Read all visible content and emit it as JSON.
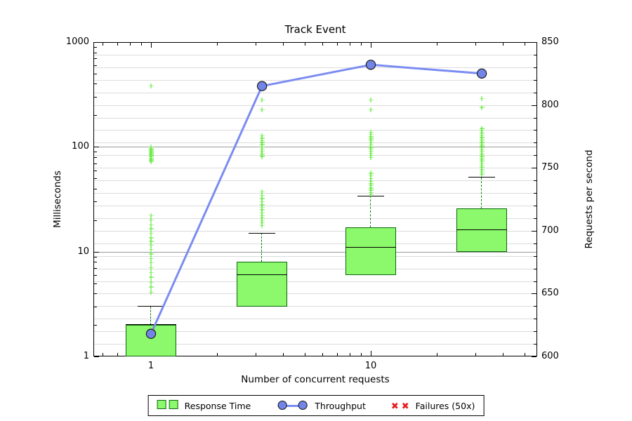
{
  "title": "Track Event",
  "axes": {
    "x": {
      "label": "Number of concurrent requests",
      "scale": "log",
      "tick_labels": [
        "1",
        "10"
      ],
      "tick_values": [
        1,
        10
      ]
    },
    "y_left": {
      "label": "Milliseconds",
      "scale": "log",
      "tick_labels": [
        "1000",
        "100",
        "10",
        "1"
      ],
      "tick_values": [
        1000,
        100,
        10,
        1
      ],
      "range": [
        1,
        1000
      ]
    },
    "y_right": {
      "label": "Requests per second",
      "scale": "linear",
      "tick_labels": [
        "850",
        "800",
        "750",
        "700",
        "650",
        "600"
      ],
      "tick_values": [
        850,
        800,
        750,
        700,
        650,
        600
      ],
      "range": [
        600,
        850
      ],
      "minor_step": 10
    }
  },
  "legend": {
    "items": [
      {
        "label": "Response Time",
        "marker": "box",
        "color": "#8bf96b"
      },
      {
        "label": "Throughput",
        "marker": "circle-line",
        "color": "#7b8cf2"
      },
      {
        "label": "Failures (50x)",
        "marker": "x-cross",
        "color": "#e81c1c"
      }
    ]
  },
  "chart_data": {
    "type": "boxplot+line",
    "title": "Track Event",
    "xlabel": "Number of concurrent requests",
    "x_scale": "log",
    "y_left": {
      "label": "Milliseconds",
      "scale": "log",
      "range": [
        1,
        1000
      ],
      "grid": true
    },
    "y_right": {
      "label": "Requests per second",
      "scale": "linear",
      "range": [
        600,
        850
      ],
      "minor_grid_step": 10
    },
    "legend_position": "bottom-center",
    "series": [
      {
        "name": "Response Time",
        "type": "boxplot",
        "axis": "left",
        "unit": "ms",
        "groups": [
          {
            "x": 1,
            "q1": 1,
            "median": 2,
            "q3": 2,
            "whisker_low": 1,
            "whisker_high": 3,
            "fliers": [
              380,
              100,
              96,
              93,
              90,
              88,
              86,
              84,
              82,
              80,
              78,
              76,
              74,
              72,
              22,
              20,
              18,
              16.5,
              15,
              13.5,
              12.5,
              11.5,
              10.5,
              9.5,
              8.6,
              7.8,
              7,
              6.3,
              5.7,
              5.1,
              4.6,
              4.1
            ]
          },
          {
            "x": 3.2,
            "q1": 3,
            "median": 6,
            "q3": 8,
            "whisker_low": 3,
            "whisker_high": 15,
            "fliers": [
              280,
              225,
              128,
              121,
              115,
              110,
              105,
              100,
              95,
              91,
              87,
              84,
              81,
              37,
              34.5,
              32,
              30,
              28,
              26.5,
              25,
              23.5,
              22,
              21,
              19.8,
              18.8,
              17.8
            ]
          },
          {
            "x": 10,
            "q1": 6,
            "median": 11,
            "q3": 17,
            "whisker_low": 6,
            "whisker_high": 34,
            "fliers": [
              280,
              225,
              138,
              131,
              125,
              119,
              114,
              109,
              104,
              99,
              95,
              91,
              87,
              83,
              79,
              56,
              53,
              50,
              47,
              44.5,
              42.5,
              40.5,
              38.5,
              36.5,
              35
            ]
          },
          {
            "x": 32,
            "q1": 10,
            "median": 16,
            "q3": 26,
            "whisker_low": 10,
            "whisker_high": 51,
            "fliers": [
              290,
              238,
              150,
              144,
              138,
              133,
              128,
              123,
              118,
              114,
              110,
              106,
              102,
              98,
              94,
              91,
              87,
              84,
              81,
              78,
              75,
              72,
              69,
              66,
              64,
              61,
              59,
              56.5,
              54.5
            ]
          }
        ]
      },
      {
        "name": "Throughput",
        "type": "line",
        "axis": "right",
        "unit": "requests/sec",
        "x": [
          1,
          3.2,
          10,
          32
        ],
        "values": [
          618,
          815,
          832,
          825
        ]
      },
      {
        "name": "Failures (50x)",
        "type": "scatter",
        "axis": "left",
        "points": []
      }
    ]
  }
}
